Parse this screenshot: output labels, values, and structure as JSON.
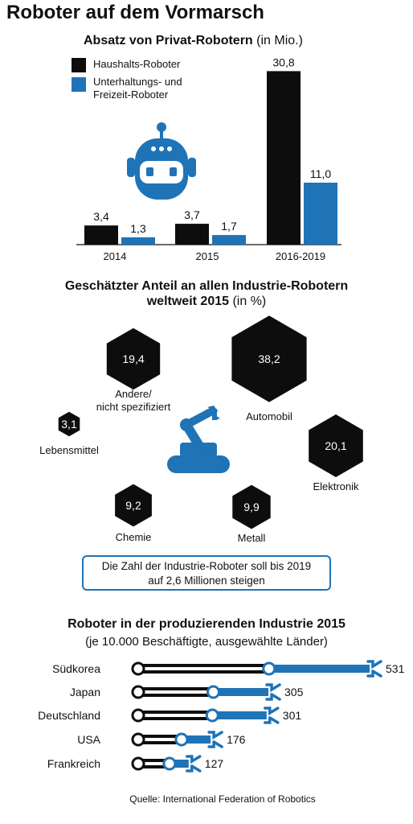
{
  "title": "Roboter auf dem Vormarsch",
  "colors": {
    "black": "#0d0d0d",
    "blue": "#1f73b7"
  },
  "chart_data": [
    {
      "type": "bar",
      "title": "Absatz von Privat-Robotern",
      "unit": "(in Mio.)",
      "categories": [
        "2014",
        "2015",
        "2016-2019"
      ],
      "series": [
        {
          "name": "Haushalts-Roboter",
          "color": "#0d0d0d",
          "values": [
            3.4,
            3.7,
            30.8
          ],
          "labels": [
            "3,4",
            "3,7",
            "30,8"
          ]
        },
        {
          "name": "Unterhaltungs- und Freizeit-Roboter",
          "color": "#1f73b7",
          "values": [
            1.3,
            1.7,
            11.0
          ],
          "labels": [
            "1,3",
            "1,7",
            "11,0"
          ]
        }
      ],
      "legend_position": "top-left",
      "grid": false
    },
    {
      "type": "bubble",
      "title": "Geschätzter Anteil an allen Industrie-Robotern weltweit 2015",
      "title_line1": "Geschätzter Anteil an allen Industrie-Robotern",
      "title_line2": "weltweit 2015",
      "unit": "(in %)",
      "items": [
        {
          "label": "Andere/\nnicht spezifiziert",
          "value": 19.4,
          "display": "19,4"
        },
        {
          "label": "Automobil",
          "value": 38.2,
          "display": "38,2"
        },
        {
          "label": "Lebensmittel",
          "value": 3.1,
          "display": "3,1"
        },
        {
          "label": "Elektronik",
          "value": 20.1,
          "display": "20,1"
        },
        {
          "label": "Chemie",
          "value": 9.2,
          "display": "9,2"
        },
        {
          "label": "Metall",
          "value": 9.9,
          "display": "9,9"
        }
      ],
      "note": "Die Zahl der Industrie-Roboter soll bis 2019\nauf 2,6 Millionen steigen"
    },
    {
      "type": "bar",
      "orientation": "horizontal",
      "title": "Roboter in der produzierenden Industrie 2015",
      "subtitle": "(je 10.000 Beschäftigte, ausgewählte Länder)",
      "categories": [
        "Südkorea",
        "Japan",
        "Deutschland",
        "USA",
        "Frankreich"
      ],
      "values": [
        531,
        305,
        301,
        176,
        127
      ]
    }
  ],
  "source": "Quelle: International Federation of Robotics"
}
